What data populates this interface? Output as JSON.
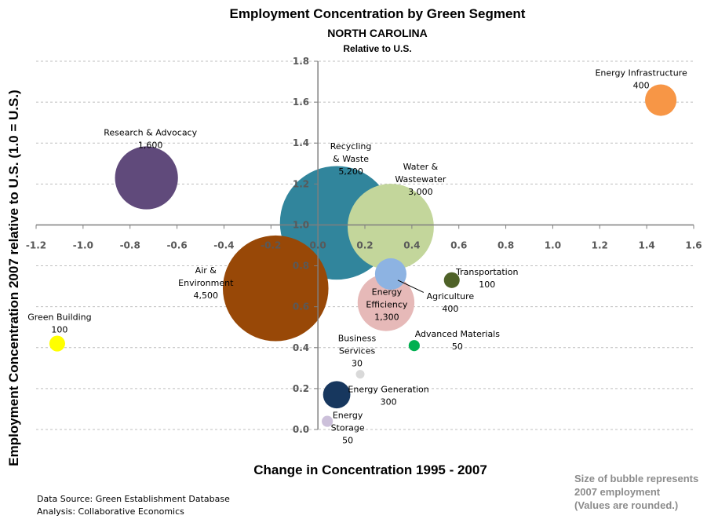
{
  "chart_data": {
    "type": "bubble",
    "title": "Employment Concentration  by Green Segment",
    "subtitle": "NORTH CAROLINA",
    "subtitle2": "Relative to U.S.",
    "xlabel": "Change in Concentration 1995 - 2007",
    "ylabel": "Employment Concentration 2007 relative to U.S. (1.0 = U.S.)",
    "xlim": [
      -1.2,
      1.6
    ],
    "ylim": [
      0.0,
      1.8
    ],
    "x_ticks": [
      "-1.2",
      "-1.0",
      "-0.8",
      "-0.6",
      "-0.4",
      "-0.2",
      "0.0",
      "0.2",
      "0.4",
      "0.6",
      "0.8",
      "1.0",
      "1.2",
      "1.4",
      "1.6"
    ],
    "y_ticks": [
      "0.0",
      "0.2",
      "0.4",
      "0.6",
      "0.8",
      "1.0",
      "1.2",
      "1.4",
      "1.6",
      "1.8"
    ],
    "x_axis_crosses_y": 1.0,
    "y_axis_crosses_x": 0.0,
    "grid": "horizontal dashed",
    "points": [
      {
        "name": "Energy Infrastructure",
        "label": "400",
        "x": 1.46,
        "y": 1.61,
        "size": 400,
        "color": "#f79646"
      },
      {
        "name": "Research & Advocacy",
        "label": "1,600",
        "x": -0.73,
        "y": 1.23,
        "size": 1600,
        "color": "#604a7b"
      },
      {
        "name": "Recycling & Waste",
        "label": "5,200",
        "x": 0.08,
        "y": 1.01,
        "size": 5200,
        "color": "#31859c"
      },
      {
        "name": "Water & Wastewater",
        "label": "3,000",
        "x": 0.31,
        "y": 0.99,
        "size": 3000,
        "color": "#c3d69b"
      },
      {
        "name": "Air & Environment",
        "label": "4,500",
        "x": -0.18,
        "y": 0.69,
        "size": 4500,
        "color": "#984807"
      },
      {
        "name": "Agriculture",
        "label": "400",
        "x": 0.31,
        "y": 0.76,
        "size": 400,
        "color": "#8db3e2"
      },
      {
        "name": "Energy Efficiency",
        "label": "1,300",
        "x": 0.29,
        "y": 0.62,
        "size": 1300,
        "color": "#e6b9b8"
      },
      {
        "name": "Transportation",
        "label": "100",
        "x": 0.57,
        "y": 0.73,
        "size": 100,
        "color": "#4f6228"
      },
      {
        "name": "Green Building",
        "label": "100",
        "x": -1.11,
        "y": 0.42,
        "size": 100,
        "color": "#ffff00"
      },
      {
        "name": "Advanced  Materials",
        "label": "50",
        "x": 0.41,
        "y": 0.41,
        "size": 50,
        "color": "#00b050"
      },
      {
        "name": "Business Services",
        "label": "30",
        "x": 0.18,
        "y": 0.27,
        "size": 30,
        "color": "#d9d9d9"
      },
      {
        "name": "Energy Generation",
        "label": "300",
        "x": 0.08,
        "y": 0.17,
        "size": 300,
        "color": "#17375e"
      },
      {
        "name": "Energy Storage",
        "label": "50",
        "x": 0.04,
        "y": 0.04,
        "size": 50,
        "color": "#ccc0da"
      }
    ]
  },
  "notes": {
    "source_line1": "Data Source:  Green Establishment  Database",
    "source_line2": "Analysis:  Collaborative  Economics",
    "size_line1": "Size of bubble represents",
    "size_line2": "2007 employment",
    "size_line3": "(Values are rounded.)"
  }
}
